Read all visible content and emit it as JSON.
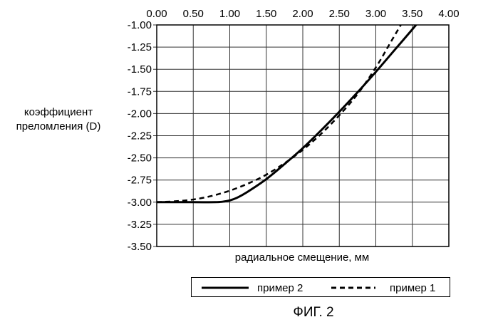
{
  "chart_data": {
    "type": "line",
    "title": "",
    "xlabel": "радиальное смещение, мм",
    "ylabel": [
      "коэффициент",
      "преломления (D)"
    ],
    "xlim": [
      0,
      4
    ],
    "ylim": [
      -3.5,
      -1.0
    ],
    "x_ticks": [
      "0.00",
      "0.50",
      "1.00",
      "1.50",
      "2.00",
      "2.50",
      "3.00",
      "3.50",
      "4.00"
    ],
    "y_ticks": [
      "-1.00",
      "-1.25",
      "-1.50",
      "-1.75",
      "-2.00",
      "-2.25",
      "-2.50",
      "-2.75",
      "-3.00",
      "-3.25",
      "-3.50"
    ],
    "x_axis_position": "top",
    "grid": true,
    "legend_position": "bottom",
    "series": [
      {
        "name": "пример 2",
        "style": "solid",
        "color": "#000000",
        "x": [
          0,
          0.5,
          0.8,
          0.9,
          1.0,
          1.1,
          1.25,
          1.5,
          1.75,
          2.0,
          2.25,
          2.5,
          2.75,
          3.0,
          3.25,
          3.5,
          3.6
        ],
        "y": [
          -3.0,
          -3.0,
          -3.0,
          -2.995,
          -2.98,
          -2.95,
          -2.88,
          -2.74,
          -2.57,
          -2.39,
          -2.19,
          -1.98,
          -1.76,
          -1.53,
          -1.29,
          -1.05,
          -0.95
        ]
      },
      {
        "name": "пример 1",
        "style": "dashed",
        "color": "#000000",
        "x": [
          0,
          0.25,
          0.5,
          0.75,
          1.0,
          1.25,
          1.5,
          1.75,
          2.0,
          2.25,
          2.5,
          2.75,
          3.0,
          3.2,
          3.35,
          3.42
        ],
        "y": [
          -3.0,
          -2.99,
          -2.97,
          -2.93,
          -2.87,
          -2.79,
          -2.69,
          -2.56,
          -2.41,
          -2.23,
          -2.02,
          -1.78,
          -1.48,
          -1.2,
          -0.99,
          -0.9
        ]
      }
    ]
  },
  "caption": "ФИГ. 2"
}
